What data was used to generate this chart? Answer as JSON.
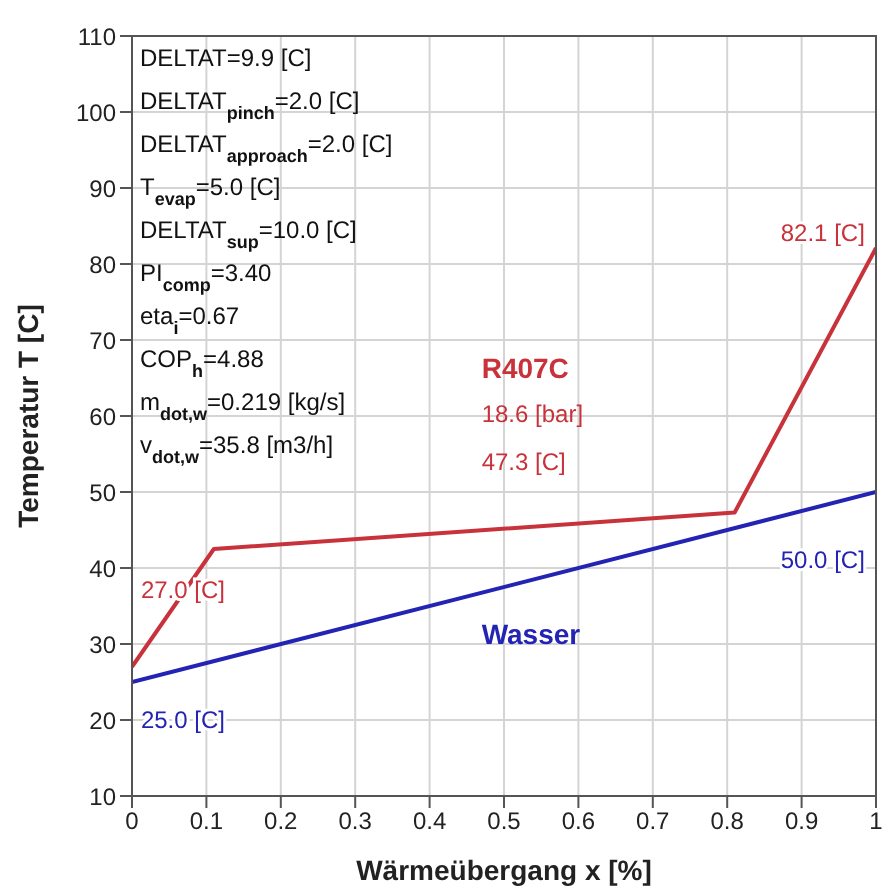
{
  "chart_data": {
    "type": "line",
    "xlabel": "Wärmeübergang x [%]",
    "ylabel": "Temperatur T [C]",
    "xlim": [
      0,
      1
    ],
    "xticks": [
      0,
      0.1,
      0.2,
      0.3,
      0.4,
      0.5,
      0.6,
      0.7,
      0.8,
      0.9,
      1
    ],
    "ylim": [
      10,
      110
    ],
    "yticks": [
      10,
      20,
      30,
      40,
      50,
      60,
      70,
      80,
      90,
      100,
      110
    ],
    "grid": true,
    "legend": false,
    "marker": "none",
    "line_style": "solid",
    "series": [
      {
        "name": "R407C",
        "color": "#c8323a",
        "x": [
          0,
          0.11,
          0.81,
          1
        ],
        "values": [
          27.0,
          42.5,
          47.3,
          82.1
        ]
      },
      {
        "name": "Wasser",
        "color": "#2323b4",
        "x": [
          0,
          1
        ],
        "values": [
          25.0,
          50.0
        ]
      }
    ],
    "annotations": [
      "DELTAT=9.9 [C]",
      "DELTAT$_{pinch}$=2.0 [C]",
      "DELTAT$_{approach}$=2.0 [C]",
      "T$_{evap}$=5.0 [C]",
      "DELTAT$_{sup}$=10.0 [C]",
      "PI$_{comp}$=3.40",
      "eta$_{i}$=0.67",
      "COP$_{h}$=4.88",
      "m$_{dot,w}$=0.219 [kg/s]",
      "v$_{dot,w}$=35.8 [m3/h]",
      "18.6 [bar]",
      "47.3 [C]",
      "27.0 [C]",
      "82.1 [C]",
      "25.0 [C]",
      "50.0 [C]"
    ]
  }
}
